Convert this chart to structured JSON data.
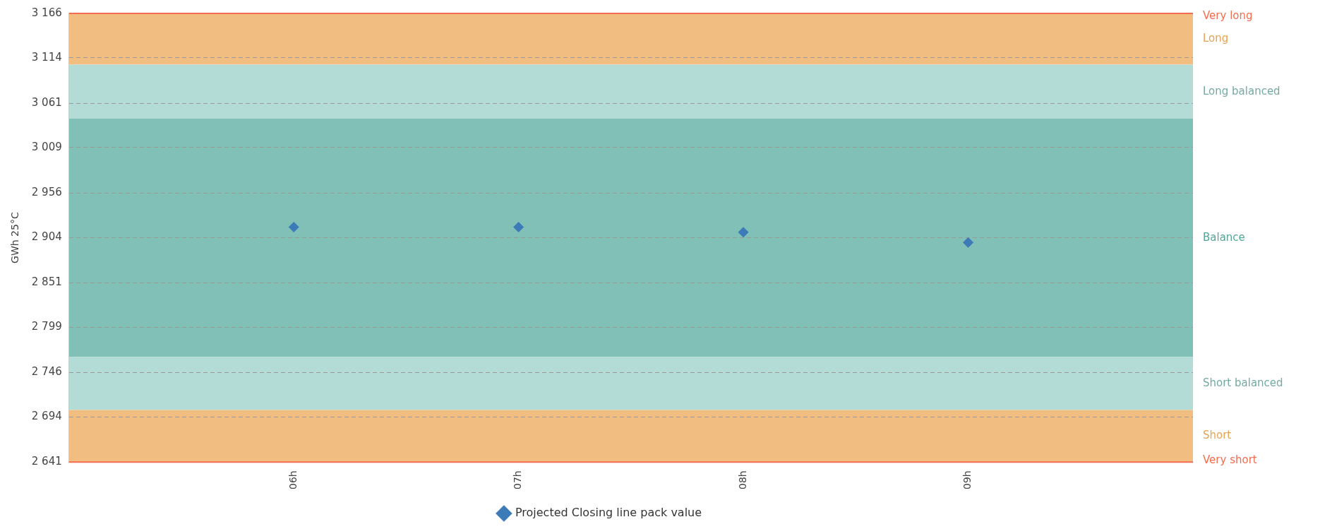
{
  "chart_data": {
    "type": "scatter",
    "ylabel": "GWh 25°C",
    "categories": [
      null,
      "06h",
      "07h",
      "08h",
      "09h",
      null
    ],
    "series": [
      {
        "name": "Projected Closing line pack value",
        "color": "#3d7ab8",
        "values": [
          null,
          2916,
          2916,
          2910,
          2898,
          null
        ]
      }
    ],
    "ylim": [
      2641,
      3166
    ],
    "yticks": [
      {
        "value": 2641,
        "label": "2 641"
      },
      {
        "value": 2694,
        "label": "2 694"
      },
      {
        "value": 2746,
        "label": "2 746"
      },
      {
        "value": 2799,
        "label": "2 799"
      },
      {
        "value": 2851,
        "label": "2 851"
      },
      {
        "value": 2904,
        "label": "2 904"
      },
      {
        "value": 2956,
        "label": "2 956"
      },
      {
        "value": 3009,
        "label": "3 009"
      },
      {
        "value": 3061,
        "label": "3 061"
      },
      {
        "value": 3114,
        "label": "3 114"
      },
      {
        "value": 3166,
        "label": "3 166"
      }
    ],
    "bands": [
      {
        "axis": "y",
        "from": 3106,
        "to": 3166,
        "label": "Long",
        "color": "#f2bd80"
      },
      {
        "axis": "y",
        "from": 3043,
        "to": 3106,
        "label": "Long balanced",
        "color": "#b3dcd6"
      },
      {
        "axis": "y",
        "from": 2764,
        "to": 3043,
        "label": "Balance",
        "color": "#80c0b6"
      },
      {
        "axis": "y",
        "from": 2702,
        "to": 2764,
        "label": "Short balanced",
        "color": "#b3dcd6"
      },
      {
        "axis": "y",
        "from": 2641,
        "to": 2702,
        "label": "Short",
        "color": "#f2bd80"
      }
    ],
    "ref_lines": [
      {
        "axis": "y",
        "value": 3166,
        "label": "Very long",
        "color": "#f26d4f"
      },
      {
        "axis": "y",
        "value": 2641,
        "label": "Very short",
        "color": "#f26d4f"
      }
    ],
    "grid": "y",
    "legend": "bottom",
    "marker": "diamond"
  }
}
